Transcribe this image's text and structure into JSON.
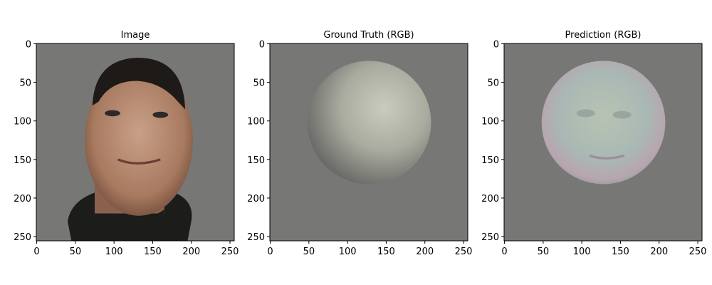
{
  "chart_data": [
    {
      "type": "image",
      "title": "Image",
      "xlim": [
        -0.5,
        255.5
      ],
      "ylim": [
        255.5,
        -0.5
      ],
      "xticks": [
        0,
        50,
        100,
        150,
        200,
        250
      ],
      "yticks": [
        0,
        50,
        100,
        150,
        200,
        250
      ]
    },
    {
      "type": "image",
      "title": "Ground Truth (RGB)",
      "xlim": [
        -0.5,
        255.5
      ],
      "ylim": [
        255.5,
        -0.5
      ],
      "xticks": [
        0,
        50,
        100,
        150,
        200,
        250
      ],
      "yticks": [
        0,
        50,
        100,
        150,
        200,
        250
      ]
    },
    {
      "type": "image",
      "title": "Prediction (RGB)",
      "xlim": [
        -0.5,
        255.5
      ],
      "ylim": [
        255.5,
        -0.5
      ],
      "xticks": [
        0,
        50,
        100,
        150,
        200,
        250
      ],
      "yticks": [
        0,
        50,
        100,
        150,
        200,
        250
      ]
    }
  ]
}
